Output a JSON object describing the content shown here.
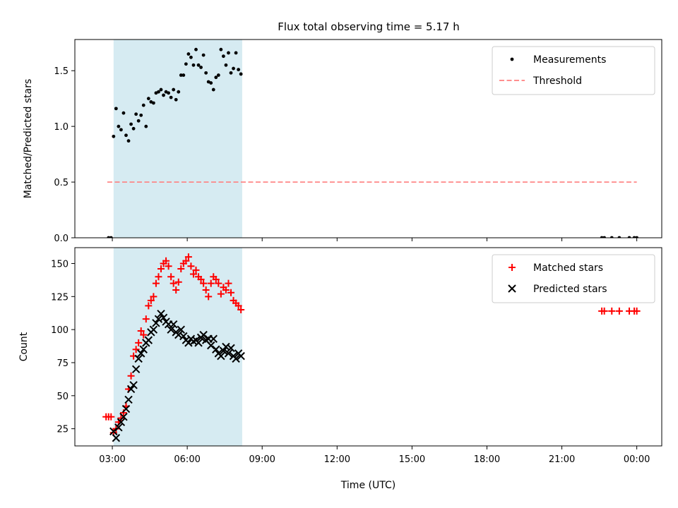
{
  "figure": {
    "title": "Flux total observing time = 5.17 h"
  },
  "chart_data": [
    {
      "type": "scatter",
      "xlabel": "",
      "ylabel": "Matched/Predicted stars",
      "xlim": [
        1.5,
        25.0
      ],
      "ylim": [
        0.0,
        1.78
      ],
      "yticks": [
        0.0,
        0.5,
        1.0,
        1.5
      ],
      "ytick_labels": [
        "0.0",
        "0.5",
        "1.0",
        "1.5"
      ],
      "shaded_span": {
        "x0": 3.05,
        "x1": 8.2,
        "color": "#add8e6"
      },
      "legend_position": "upper right",
      "series": [
        {
          "name": "Measurements",
          "marker": "dot",
          "color": "#000000",
          "x": [
            3.05,
            3.15,
            3.25,
            3.35,
            3.45,
            3.55,
            3.65,
            3.75,
            3.85,
            3.95,
            4.05,
            4.15,
            4.25,
            4.35,
            4.45,
            4.55,
            4.65,
            4.75,
            4.85,
            4.95,
            5.05,
            5.15,
            5.25,
            5.35,
            5.45,
            5.55,
            5.65,
            5.75,
            5.85,
            5.95,
            6.05,
            6.15,
            6.25,
            6.35,
            6.45,
            6.55,
            6.65,
            6.75,
            6.85,
            6.95,
            7.05,
            7.15,
            7.25,
            7.35,
            7.45,
            7.55,
            7.65,
            7.75,
            7.85,
            7.95,
            8.05,
            8.15,
            2.85,
            2.95,
            22.6,
            22.7,
            23.0,
            23.3,
            23.7,
            23.9,
            24.0
          ],
          "y": [
            0.91,
            1.16,
            1.0,
            0.97,
            1.12,
            0.92,
            0.87,
            1.02,
            0.98,
            1.11,
            1.05,
            1.1,
            1.19,
            1.0,
            1.25,
            1.22,
            1.21,
            1.3,
            1.31,
            1.33,
            1.28,
            1.31,
            1.3,
            1.26,
            1.33,
            1.24,
            1.31,
            1.46,
            1.46,
            1.56,
            1.65,
            1.62,
            1.55,
            1.69,
            1.55,
            1.53,
            1.64,
            1.48,
            1.4,
            1.39,
            1.33,
            1.44,
            1.46,
            1.69,
            1.63,
            1.55,
            1.66,
            1.48,
            1.52,
            1.66,
            1.51,
            1.47,
            0.0,
            0.0,
            0.0,
            0.0,
            0.0,
            0.0,
            0.0,
            0.0,
            0.0
          ]
        },
        {
          "name": "Threshold",
          "type": "dashed-line",
          "color": "#ff7f7f",
          "x": [
            2.8,
            24.0
          ],
          "y": [
            0.5,
            0.5
          ]
        }
      ]
    },
    {
      "type": "scatter",
      "xlabel": "Time (UTC)",
      "ylabel": "Count",
      "xlim": [
        1.5,
        25.0
      ],
      "ylim": [
        12,
        162
      ],
      "yticks": [
        25,
        50,
        75,
        100,
        125,
        150
      ],
      "ytick_labels": [
        "25",
        "50",
        "75",
        "100",
        "125",
        "150"
      ],
      "xticks": [
        3,
        6,
        9,
        12,
        15,
        18,
        21,
        24
      ],
      "xtick_labels": [
        "03:00",
        "06:00",
        "09:00",
        "12:00",
        "15:00",
        "18:00",
        "21:00",
        "00:00"
      ],
      "shaded_span": {
        "x0": 3.05,
        "x1": 8.2,
        "color": "#add8e6"
      },
      "legend_position": "upper right",
      "series": [
        {
          "name": "Matched stars",
          "marker": "plus",
          "color": "#ff0000",
          "x": [
            2.75,
            2.85,
            2.95,
            3.05,
            3.15,
            3.25,
            3.35,
            3.45,
            3.55,
            3.65,
            3.75,
            3.85,
            3.95,
            4.05,
            4.15,
            4.25,
            4.35,
            4.45,
            4.55,
            4.65,
            4.75,
            4.85,
            4.95,
            5.05,
            5.15,
            5.25,
            5.35,
            5.45,
            5.55,
            5.65,
            5.75,
            5.85,
            5.95,
            6.05,
            6.15,
            6.25,
            6.35,
            6.45,
            6.55,
            6.65,
            6.75,
            6.85,
            6.95,
            7.05,
            7.15,
            7.25,
            7.35,
            7.45,
            7.55,
            7.65,
            7.75,
            7.85,
            7.95,
            8.05,
            8.15,
            22.6,
            22.7,
            23.0,
            23.3,
            23.7,
            23.9,
            24.0
          ],
          "y": [
            34,
            34,
            34,
            22,
            25,
            30,
            33,
            37,
            42,
            55,
            65,
            80,
            85,
            90,
            99,
            96,
            108,
            118,
            122,
            125,
            135,
            140,
            146,
            150,
            152,
            148,
            140,
            135,
            130,
            136,
            146,
            150,
            152,
            155,
            148,
            142,
            145,
            140,
            138,
            135,
            130,
            125,
            135,
            140,
            138,
            135,
            127,
            132,
            130,
            135,
            128,
            122,
            120,
            118,
            115,
            114,
            114,
            114,
            114,
            114,
            114,
            114
          ]
        },
        {
          "name": "Predicted stars",
          "marker": "x",
          "color": "#000000",
          "x": [
            3.05,
            3.15,
            3.25,
            3.35,
            3.45,
            3.55,
            3.65,
            3.75,
            3.85,
            3.95,
            4.05,
            4.15,
            4.25,
            4.35,
            4.45,
            4.55,
            4.65,
            4.75,
            4.85,
            4.95,
            5.05,
            5.15,
            5.25,
            5.35,
            5.45,
            5.55,
            5.65,
            5.75,
            5.85,
            5.95,
            6.05,
            6.15,
            6.25,
            6.35,
            6.45,
            6.55,
            6.65,
            6.75,
            6.85,
            6.95,
            7.05,
            7.15,
            7.25,
            7.35,
            7.45,
            7.55,
            7.65,
            7.75,
            7.85,
            7.95,
            8.05,
            8.15
          ],
          "y": [
            23,
            18,
            26,
            30,
            34,
            40,
            47,
            55,
            58,
            70,
            78,
            82,
            85,
            90,
            92,
            98,
            100,
            105,
            108,
            112,
            109,
            106,
            104,
            100,
            104,
            98,
            96,
            100,
            95,
            92,
            90,
            93,
            91,
            92,
            90,
            94,
            96,
            92,
            93,
            88,
            93,
            85,
            82,
            80,
            84,
            87,
            82,
            86,
            80,
            78,
            82,
            80
          ]
        }
      ]
    }
  ]
}
